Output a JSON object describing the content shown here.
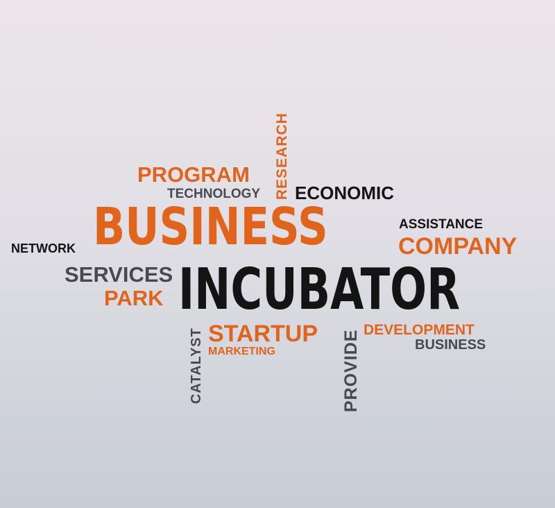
{
  "colors": {
    "orange": "#e0641c",
    "black": "#141414",
    "gray": "#46494f"
  },
  "words": {
    "research": "RESEARCH",
    "program": "PROGRAM",
    "technology": "TECHNOLOGY",
    "economic": "ECONOMIC",
    "business_main": "BUSINESS",
    "assistance": "ASSISTANCE",
    "company": "COMPANY",
    "network": "NETWORK",
    "services": "SERVICES",
    "incubator": "INCUBATOR",
    "park": "PARK",
    "catalyst": "CATALYST",
    "startup": "STARTUP",
    "marketing": "MARKETING",
    "provide": "PROVIDE",
    "development": "DEVELOPMENT",
    "business_small": "BUSINESS"
  }
}
